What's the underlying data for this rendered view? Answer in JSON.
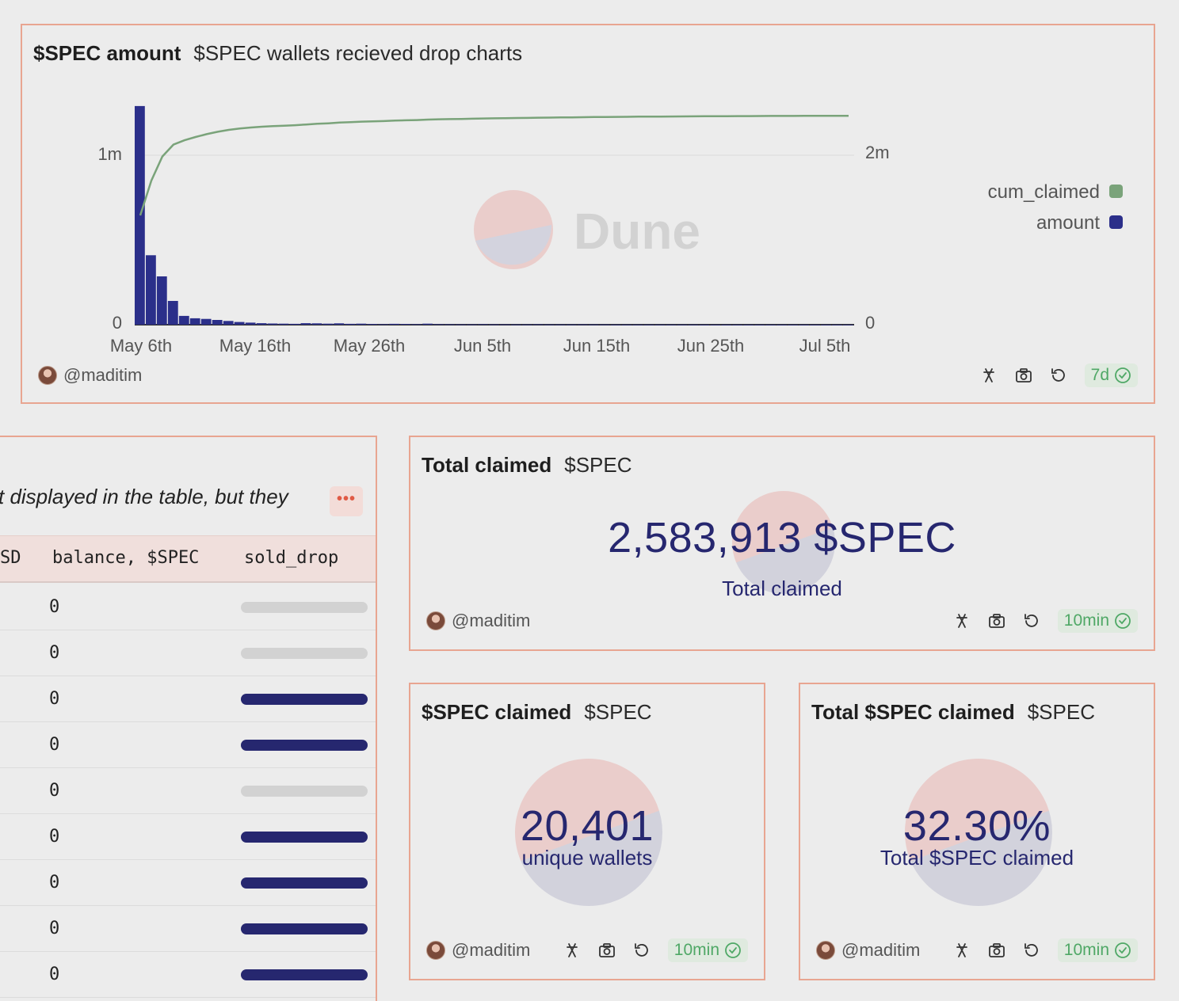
{
  "chart_card": {
    "title": "$SPEC amount",
    "subtitle": "$SPEC wallets recieved drop charts",
    "author": "@maditim",
    "refresh_badge": "7d",
    "watermark": "Dune",
    "legend": [
      {
        "label": "cum_claimed",
        "color": "#7aa37a"
      },
      {
        "label": "amount",
        "color": "#2b2f8a"
      }
    ],
    "left_axis_ticks": [
      "1m",
      "0"
    ],
    "right_axis_ticks": [
      "2m",
      "0"
    ],
    "x_ticks": [
      "May 6th",
      "May 16th",
      "May 26th",
      "Jun 5th",
      "Jun 15th",
      "Jun 25th",
      "Jul 5th"
    ]
  },
  "chart_data": {
    "type": "bar",
    "title": "$SPEC amount",
    "subtitle": "$SPEC wallets recieved drop charts",
    "x_tick_labels": [
      "May 6th",
      "May 16th",
      "May 26th",
      "Jun 5th",
      "Jun 15th",
      "Jun 25th",
      "Jul 5th"
    ],
    "start_day_index_label": "May 6th",
    "day_offsets": [
      0,
      1,
      2,
      3,
      4,
      5,
      6,
      7,
      8,
      9,
      10,
      11,
      12,
      13,
      14,
      15,
      16,
      17,
      18,
      19,
      20,
      21,
      22,
      23,
      24,
      25,
      26,
      27,
      28,
      29,
      30,
      31,
      32,
      33,
      34,
      35,
      36,
      37,
      38,
      39,
      40,
      41,
      42,
      43,
      44,
      45,
      46,
      47,
      48,
      49,
      50,
      51,
      52,
      53,
      54,
      55,
      56,
      57,
      58,
      59,
      60,
      61,
      62,
      63,
      64
    ],
    "series": [
      {
        "name": "amount",
        "axis": "left",
        "color": "#2b2f8a",
        "values": [
          1290000,
          410000,
          285000,
          140000,
          52000,
          38000,
          34000,
          28000,
          22000,
          16000,
          12000,
          9000,
          7000,
          6000,
          5000,
          9000,
          8000,
          6000,
          8000,
          5000,
          6000,
          4000,
          3000,
          5000,
          4000,
          3000,
          6000,
          3000,
          2500,
          2000,
          2000,
          3000,
          2000,
          1800,
          1500,
          1500,
          2500,
          1500,
          1500,
          1200,
          2000,
          1500,
          1200,
          1000,
          1000,
          1000,
          900,
          900,
          800,
          900,
          800,
          700,
          700,
          600,
          600,
          500,
          500,
          500,
          500,
          400,
          400,
          400,
          400,
          300,
          300
        ]
      },
      {
        "name": "cum_claimed",
        "axis": "right",
        "type": "line",
        "color": "#7aa37a",
        "values": [
          1290000,
          1700000,
          1985000,
          2125000,
          2177000,
          2215000,
          2249000,
          2277000,
          2299000,
          2315000,
          2327000,
          2336000,
          2343000,
          2349000,
          2354000,
          2363000,
          2371000,
          2377000,
          2385000,
          2390000,
          2396000,
          2400000,
          2403000,
          2408000,
          2412000,
          2415000,
          2421000,
          2424000,
          2426500,
          2428500,
          2430500,
          2433500,
          2435500,
          2437300,
          2438800,
          2440300,
          2442800,
          2444300,
          2445800,
          2447000,
          2449000,
          2450500,
          2451700,
          2452700,
          2453700,
          2454700,
          2455600,
          2456500,
          2457300,
          2458200,
          2459000,
          2459700,
          2460400,
          2461000,
          2461600,
          2462100,
          2462600,
          2463100,
          2463600,
          2464000,
          2464400,
          2464800,
          2465200,
          2465500,
          2465800
        ]
      }
    ],
    "left_ylim": [
      0,
      1300000
    ],
    "left_ticks": [
      0,
      1000000
    ],
    "left_tick_labels": [
      "0",
      "1m"
    ],
    "right_ylim": [
      0,
      2580000
    ],
    "right_ticks": [
      0,
      2000000
    ],
    "right_tick_labels": [
      "0",
      "2m"
    ],
    "grid": true,
    "legend_position": "right"
  },
  "table_card": {
    "note": "t displayed in the table, but they",
    "more_label": "•••",
    "columns": [
      "SD",
      "balance, $SPEC",
      "sold_drop"
    ],
    "rows": [
      {
        "balance": "0",
        "sold_drop": 0
      },
      {
        "balance": "0",
        "sold_drop": 0
      },
      {
        "balance": "0",
        "sold_drop": 1
      },
      {
        "balance": "0",
        "sold_drop": 1
      },
      {
        "balance": "0",
        "sold_drop": 0
      },
      {
        "balance": "0",
        "sold_drop": 1
      },
      {
        "balance": "0",
        "sold_drop": 1
      },
      {
        "balance": "0",
        "sold_drop": 1
      },
      {
        "balance": "0",
        "sold_drop": 1
      }
    ]
  },
  "total_claimed_card": {
    "title": "Total claimed",
    "subtitle": "$SPEC",
    "value": "2,583,913 $SPEC",
    "label": "Total claimed",
    "author": "@maditim",
    "refresh_badge": "10min"
  },
  "spec_claimed_card": {
    "title": "$SPEC claimed",
    "subtitle": "$SPEC",
    "value": "20,401",
    "label": "unique wallets",
    "author": "@maditim",
    "refresh_badge": "10min"
  },
  "total_spec_claimed_card": {
    "title": "Total $SPEC claimed",
    "subtitle": "$SPEC",
    "value": "32.30%",
    "label": "Total $SPEC claimed",
    "author": "@maditim",
    "refresh_badge": "10min"
  }
}
